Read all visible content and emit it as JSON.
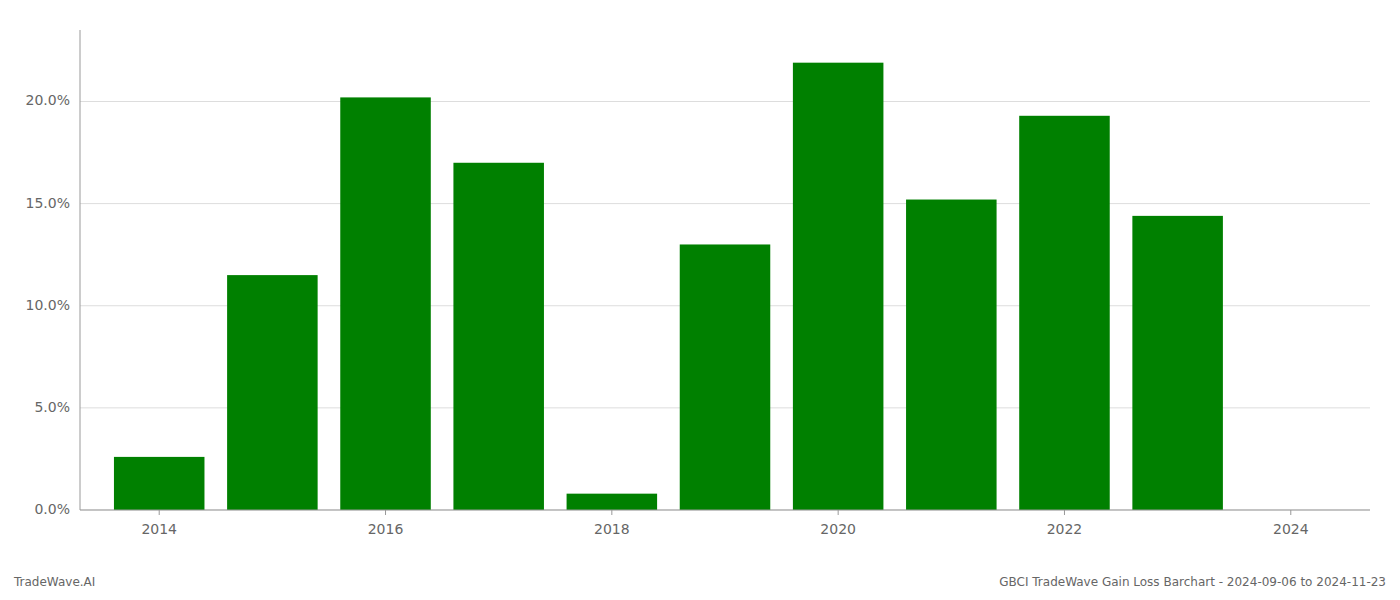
{
  "chart_data": {
    "type": "bar",
    "x": [
      2014,
      2015,
      2016,
      2017,
      2018,
      2019,
      2020,
      2021,
      2022,
      2023
    ],
    "values": [
      0.026,
      0.115,
      0.202,
      0.17,
      0.008,
      0.13,
      0.219,
      0.152,
      0.193,
      0.144
    ],
    "color": "#008000",
    "xlim": [
      2013.3,
      2024.7
    ],
    "xticks": [
      2014,
      2016,
      2018,
      2020,
      2022,
      2024
    ],
    "ylim": [
      0,
      0.235
    ],
    "yticks": [
      {
        "value": 0.0,
        "label": "0.0%"
      },
      {
        "value": 0.05,
        "label": "5.0%"
      },
      {
        "value": 0.1,
        "label": "10.0%"
      },
      {
        "value": 0.15,
        "label": "15.0%"
      },
      {
        "value": 0.2,
        "label": "20.0%"
      }
    ],
    "grid": true,
    "annotations": [
      "TradeWave.AI",
      "GBCI TradeWave Gain Loss Barchart - 2024-09-06 to 2024-11-23"
    ]
  }
}
